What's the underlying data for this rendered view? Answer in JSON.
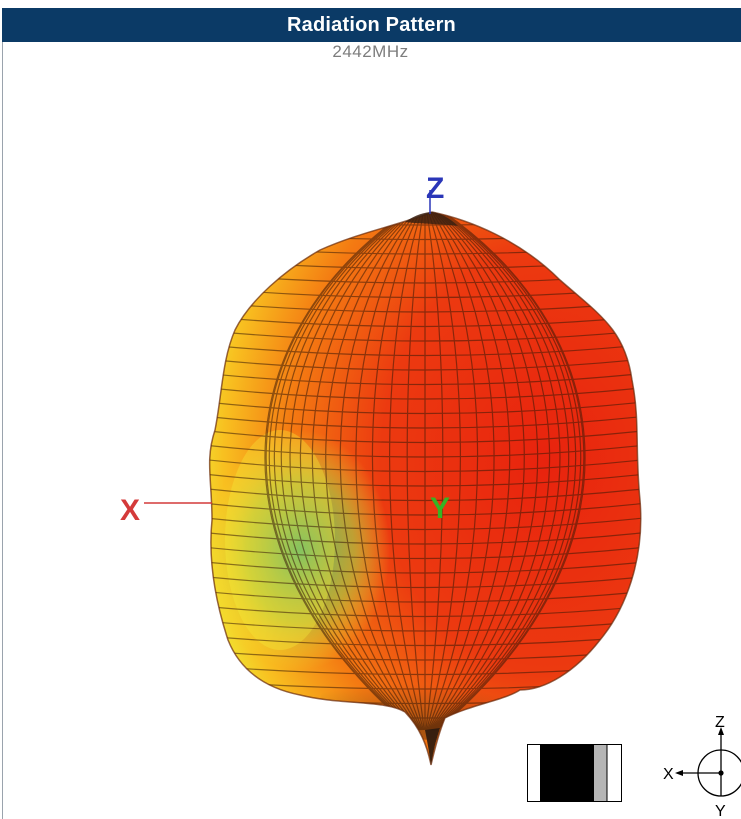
{
  "header": {
    "title": "Radiation Pattern",
    "subtitle": "2442MHz"
  },
  "plot_axes": {
    "x": "X",
    "y": "Y",
    "z": "Z"
  },
  "orientation_widget": {
    "x": "X",
    "y": "Y",
    "z": "Z"
  },
  "colors": {
    "header_bg": "#0b3a66",
    "lobe_max": "#e8230e",
    "lobe_mid": "#f47a12",
    "lobe_low": "#eef43a",
    "lobe_min": "#3fae7a",
    "axis_x": "#d43a3a",
    "axis_y": "#35b524",
    "axis_z": "#2a36b8"
  }
}
